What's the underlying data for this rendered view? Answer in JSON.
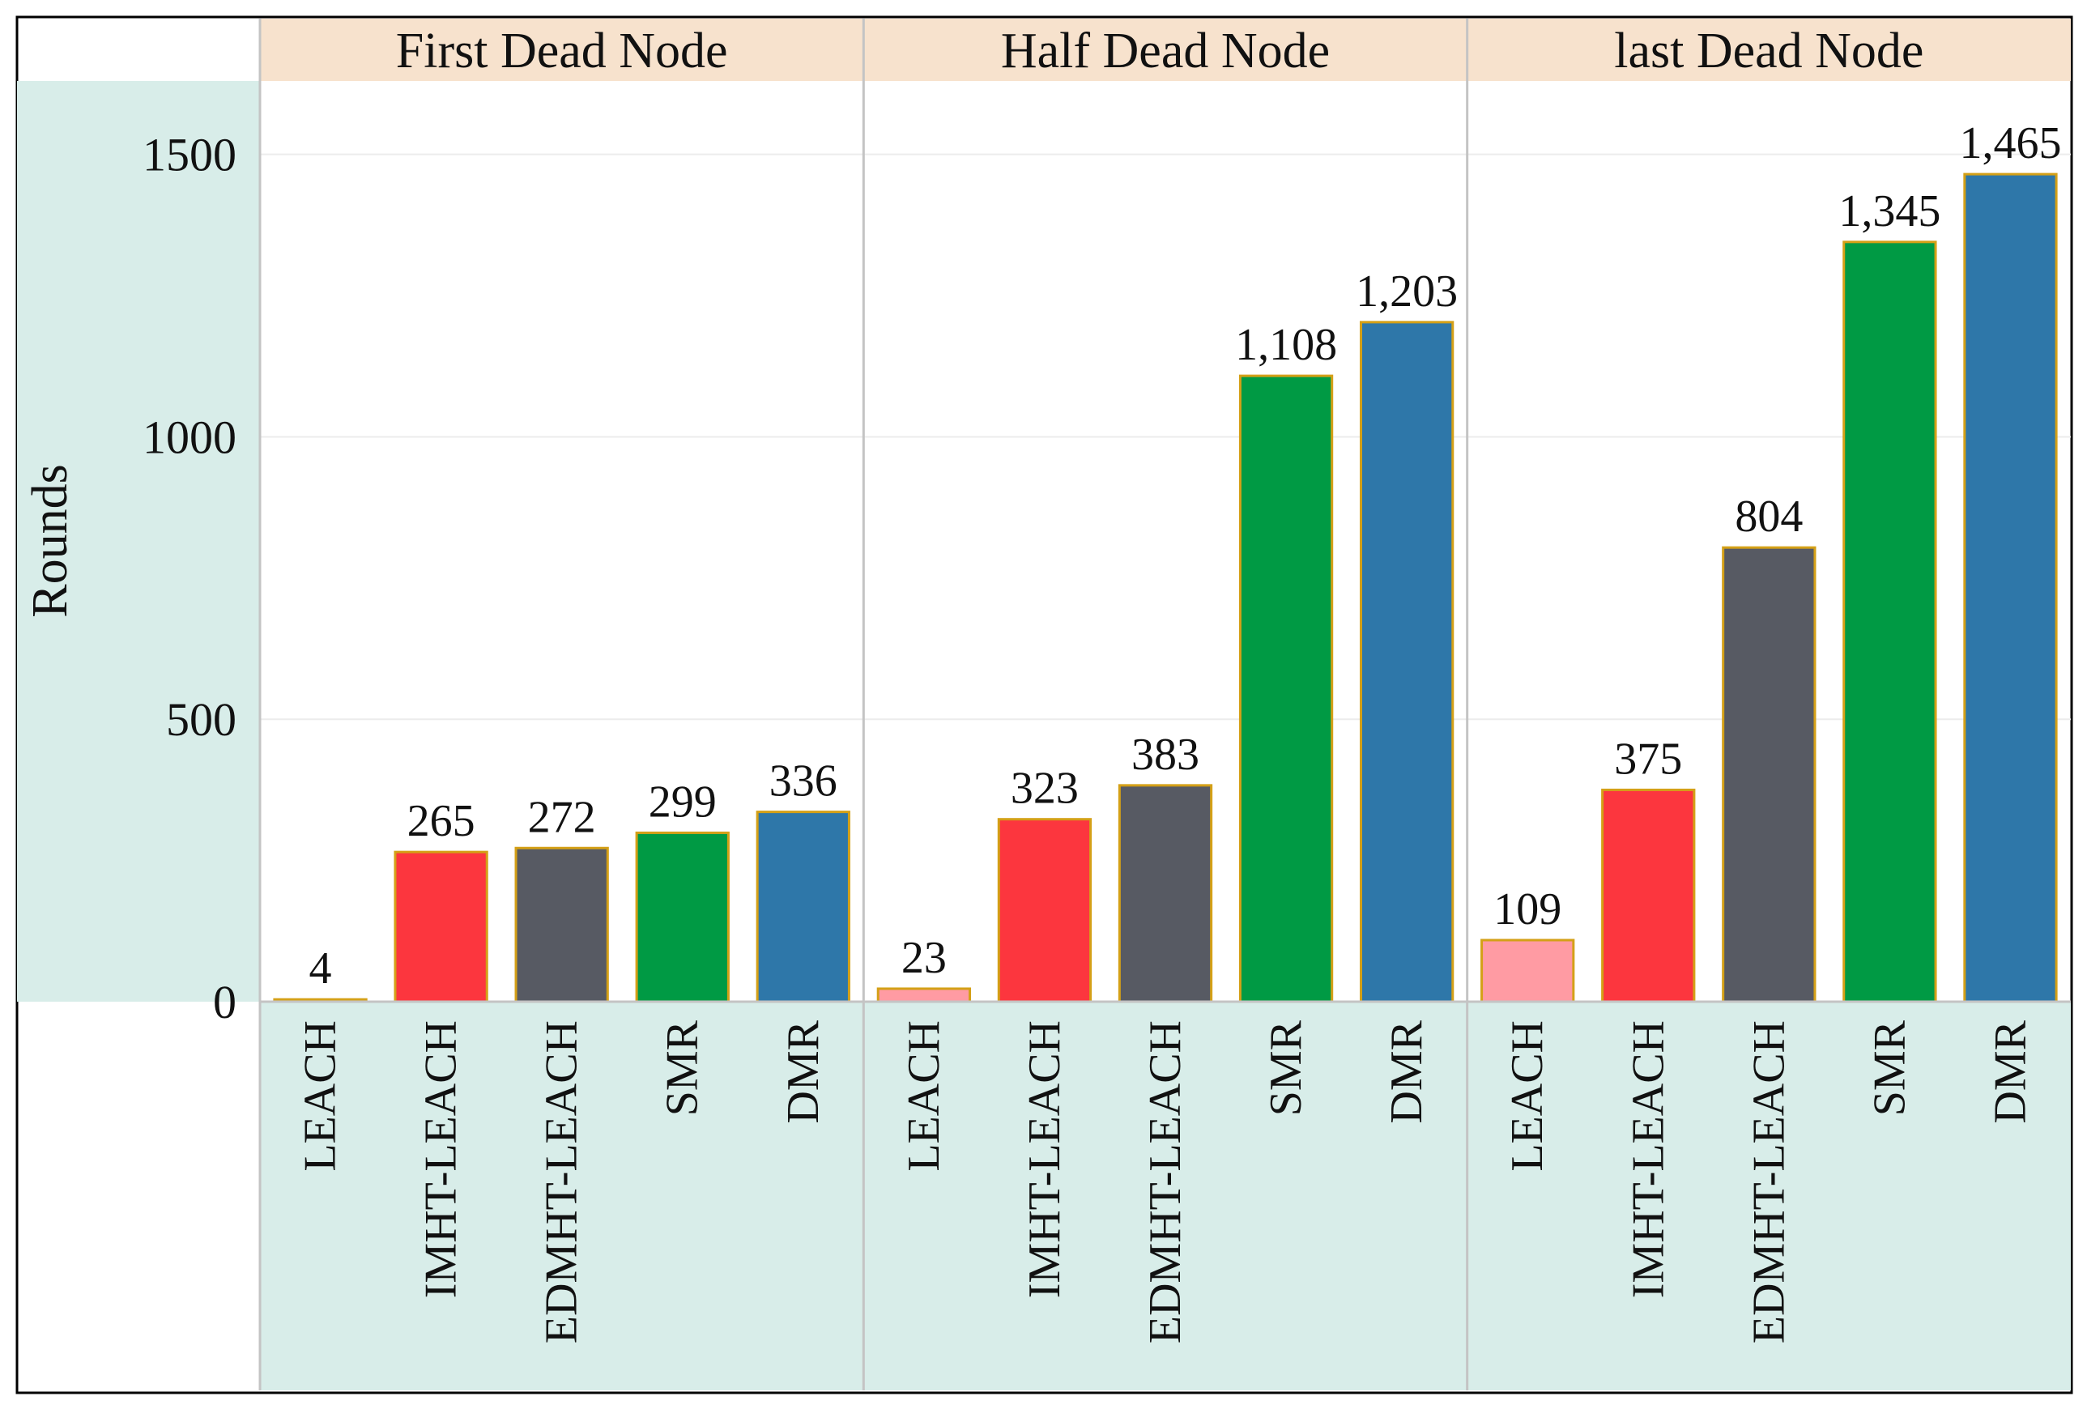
{
  "chart_data": {
    "type": "bar",
    "ylabel": "Rounds",
    "ylim": [
      0,
      1630
    ],
    "yticks": [
      0,
      500,
      1000,
      1500
    ],
    "grid": true,
    "panels": [
      {
        "title": "First Dead Node",
        "categories": [
          "LEACH",
          "IMHT-LEACH",
          "EDMHT-LEACH",
          "SMR",
          "DMR"
        ],
        "values": [
          4,
          265,
          272,
          299,
          336
        ],
        "labels": [
          "4",
          "265",
          "272",
          "299",
          "336"
        ]
      },
      {
        "title": "Half Dead Node",
        "categories": [
          "LEACH",
          "IMHT-LEACH",
          "EDMHT-LEACH",
          "SMR",
          "DMR"
        ],
        "values": [
          23,
          323,
          383,
          1108,
          1203
        ],
        "labels": [
          "23",
          "323",
          "383",
          "1,108",
          "1,203"
        ]
      },
      {
        "title": "last Dead Node",
        "categories": [
          "LEACH",
          "IMHT-LEACH",
          "EDMHT-LEACH",
          "SMR",
          "DMR"
        ],
        "values": [
          109,
          375,
          804,
          1345,
          1465
        ],
        "labels": [
          "109",
          "375",
          "804",
          "1,345",
          "1,465"
        ]
      }
    ],
    "colors": {
      "LEACH": "#ff9ba3",
      "IMHT-LEACH": "#fc363e",
      "EDMHT-LEACH": "#575a63",
      "SMR": "#009a44",
      "DMR": "#2e77a9"
    },
    "bar_outline": "#d4a017",
    "header_bg": "#f7e2cd",
    "axis_bg": "#d8ede9"
  }
}
